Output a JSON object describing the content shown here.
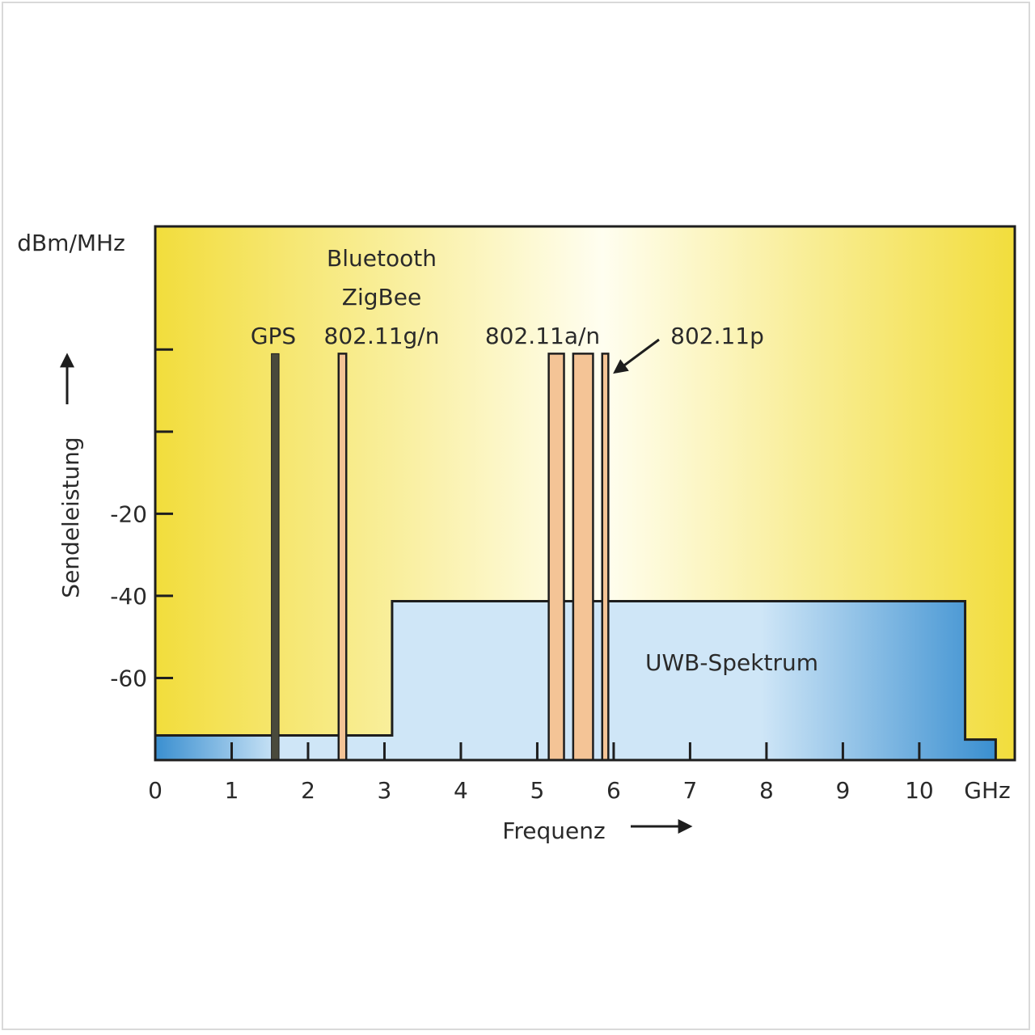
{
  "chart_data": {
    "type": "area",
    "ylabel": "Sendeleistung",
    "yunit": "dBm/MHz",
    "xlabel": "Frequenz",
    "xunit": "GHz",
    "xlim": [
      0,
      11.25
    ],
    "ylim": [
      -80,
      50
    ],
    "x_ticks": [
      0,
      1,
      2,
      3,
      4,
      5,
      6,
      7,
      8,
      9,
      10
    ],
    "x_tick_labels": [
      "0",
      "1",
      "2",
      "3",
      "4",
      "5",
      "6",
      "7",
      "8",
      "9",
      "10"
    ],
    "y_ticks": [
      -60,
      -40,
      -20,
      0,
      20
    ],
    "y_tick_labels": [
      "-60",
      "-40",
      "-20",
      "",
      ""
    ],
    "uwb_spectrum": {
      "label": "UWB-Spektrum",
      "steps": [
        {
          "x_start": 0,
          "x_end": 3.1,
          "level": -74
        },
        {
          "x_start": 3.1,
          "x_end": 10.6,
          "level": -41.3
        },
        {
          "x_start": 10.6,
          "x_end": 11.0,
          "level": -75
        }
      ]
    },
    "bands": [
      {
        "name": "GPS",
        "x_start": 1.52,
        "x_end": 1.62,
        "level": 19,
        "style": "dark"
      },
      {
        "name": "802.11g/n",
        "x_start": 2.4,
        "x_end": 2.5,
        "level": 19,
        "style": "orange"
      },
      {
        "name": "802.11a/n",
        "x_start": 5.15,
        "x_end": 5.35,
        "level": 19,
        "style": "orange"
      },
      {
        "name": "802.11a/n",
        "x_start": 5.47,
        "x_end": 5.73,
        "level": 19,
        "style": "orange"
      },
      {
        "name": "802.11p",
        "x_start": 5.85,
        "x_end": 5.93,
        "level": 19,
        "style": "orange"
      }
    ],
    "annotations": [
      {
        "text": "GPS",
        "anchor_x": 1.55
      },
      {
        "text": "Bluetooth",
        "anchor_x": 2.95
      },
      {
        "text": "ZigBee",
        "anchor_x": 2.95
      },
      {
        "text": "802.11g/n",
        "anchor_x": 2.95
      },
      {
        "text": "802.11a/n",
        "anchor_x": 5.15
      },
      {
        "text": "802.11p",
        "anchor_x": 7.35,
        "arrow_to_x": 5.93
      }
    ]
  },
  "colors": {
    "background_edge": "#f2dd3c",
    "background_center": "#fffef0",
    "uwb_light": "#cfe6f7",
    "uwb_dark": "#3a8fd0",
    "band_orange": "#f4c496",
    "band_dark": "#4a4a3c",
    "axis": "#1e1e1e"
  }
}
